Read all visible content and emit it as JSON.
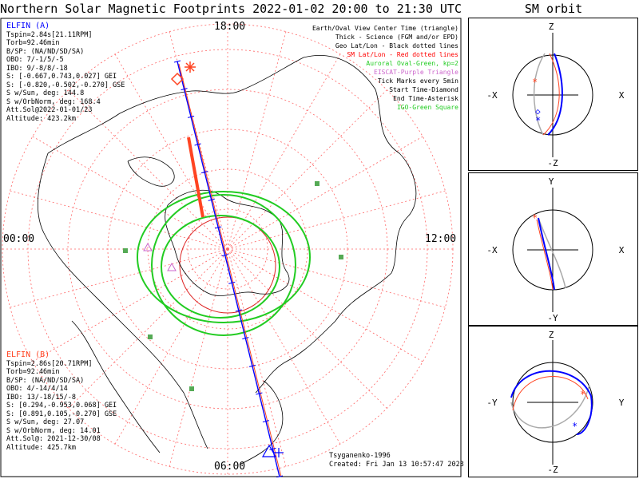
{
  "title": "Northern Solar Magnetic Footprints 2022-01-02 20:00 to 21:30 UTC",
  "orbit_title": "SM orbit",
  "colors": {
    "elfin_a": "#0000ff",
    "elfin_b": "#ff4422",
    "oval": "#22cc22",
    "grid": "#ff6666",
    "eiscat": "#cc66cc",
    "coast": "#000000",
    "gray": "#aaaaaa"
  },
  "elfin_a": {
    "name": "ELFIN (A)",
    "lines": [
      "Tspin=2.84s[21.11RPM]",
      "Torb=92.46min",
      "B/SP: (NA/ND/SD/SA)",
      "OBO: 7/-1/5/-5",
      "IBO: 9/-8/8/-18",
      "S: [-0.667,0.743,0.027] GEI",
      "S: [-0.820,-0.502,-0.270] GSE",
      "S w/Sun, deg: 144.8",
      "S w/OrbNorm, deg: 168.4",
      "Att.Sol@2022-01-01/23",
      "Altitude: 423.2km"
    ]
  },
  "elfin_b": {
    "name": "ELFIN (B)",
    "lines": [
      "Tspin=2.86s[20.71RPM]",
      "Torb=92.46min",
      "B/SP: (NA/ND/SD/SA)",
      "OBO: 4/-14/4/14",
      "IBO: 13/-18/15/-8",
      "S: [0.294,-0.953,0.068] GEI",
      "S: [0.891,0.105,-0.270] GSE",
      "S w/Sun, deg: 27.07",
      "S w/OrbNorm, deg: 14.01",
      "Att.Sol@: 2021-12-30/08",
      "Altitude: 425.7km"
    ]
  },
  "legend": [
    {
      "text": "Earth/Oval View Center Time (triangle)",
      "color": "#000000"
    },
    {
      "text": "Thick - Science (FGM and/or EPD)",
      "color": "#000000"
    },
    {
      "text": "Geo Lat/Lon - Black dotted lines",
      "color": "#000000"
    },
    {
      "text": "SM Lat/Lon - Red dotted lines",
      "color": "#ff0000"
    },
    {
      "text": "Auroral Oval-Green, kp=2",
      "color": "#22cc22"
    },
    {
      "text": "EISCAT-Purple Triangle",
      "color": "#cc66cc"
    },
    {
      "text": "Tick Marks every 5min",
      "color": "#000000"
    },
    {
      "text": "Start Time-Diamond",
      "color": "#000000"
    },
    {
      "text": "End Time-Asterisk",
      "color": "#000000"
    },
    {
      "text": "IGO-Green Square",
      "color": "#22cc22"
    }
  ],
  "mlt_labels": {
    "top": "18:00",
    "bottom": "06:00",
    "left": "00:00",
    "right": "12:00"
  },
  "credits": [
    "Tsyganenko-1996",
    "Created: Fri Jan 13 10:57:47 2023"
  ],
  "orbit_panels": [
    {
      "up": "Z",
      "down": "-Z",
      "left": "-X",
      "right": "X"
    },
    {
      "up": "Y",
      "down": "-Y",
      "left": "-X",
      "right": "X"
    },
    {
      "up": "Z",
      "down": "-Z",
      "left": "-Y",
      "right": "Y"
    }
  ],
  "chart_data": {
    "type": "scatter",
    "title": "Northern Solar Magnetic Footprints 2022-01-02 20:00 to 21:30 UTC",
    "projection": "polar SM (north)",
    "series": [
      {
        "name": "ELFIN (A)",
        "color": "#0000ff"
      },
      {
        "name": "ELFIN (B)",
        "color": "#ff4422"
      }
    ],
    "mlt_ticks": [
      "18:00",
      "06:00",
      "00:00",
      "12:00"
    ]
  }
}
